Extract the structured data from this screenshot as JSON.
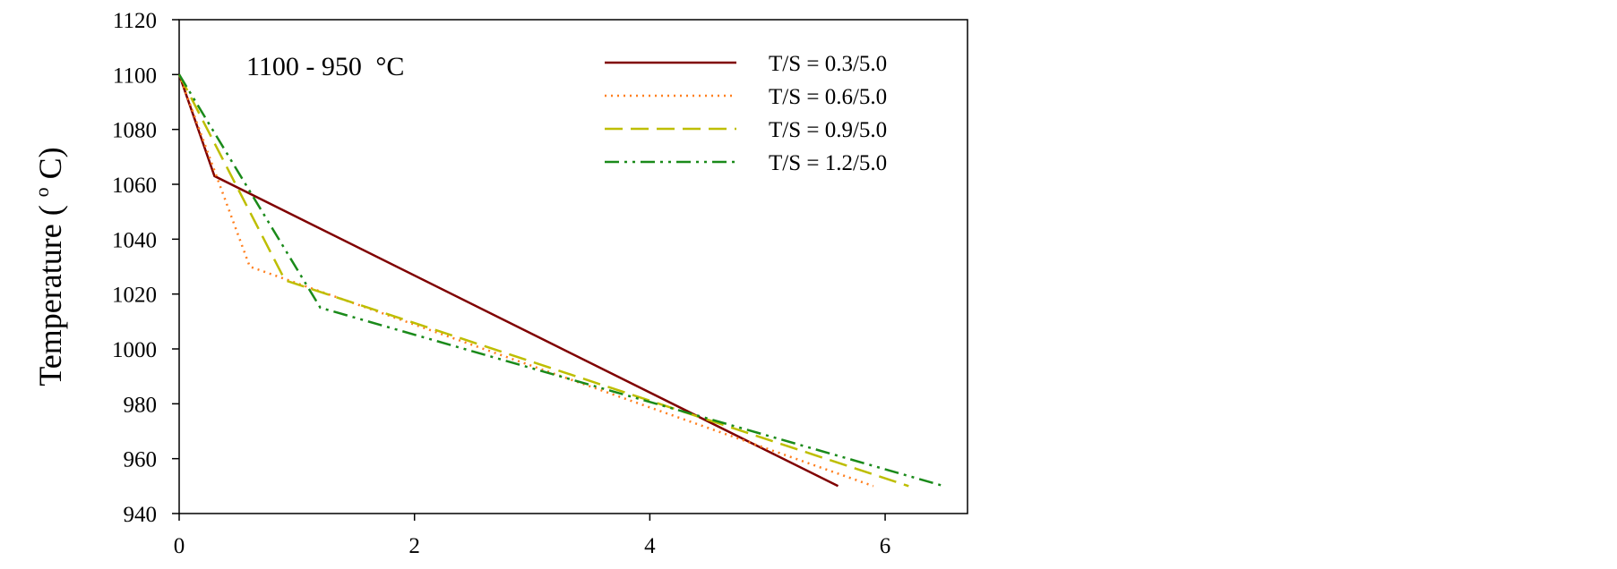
{
  "chart_data": {
    "type": "line",
    "title": "",
    "annotation": "1100 - 950",
    "annotation_unit": "°C",
    "xlabel": "",
    "ylabel": "Temperature (",
    "ylabel_sup": "o",
    "ylabel_unit": "C)",
    "xlim": [
      0,
      6.7
    ],
    "ylim": [
      940,
      1120
    ],
    "x_ticks": [
      0,
      2,
      4,
      6
    ],
    "y_ticks": [
      940,
      960,
      980,
      1000,
      1020,
      1040,
      1060,
      1080,
      1100,
      1120
    ],
    "grid": false,
    "legend_position": "top-right",
    "series": [
      {
        "name": "T/S = 0.3/5.0",
        "color": "#800000",
        "dash": "solid",
        "x": [
          0,
          0.3,
          5.6
        ],
        "y": [
          1100,
          1063,
          950
        ]
      },
      {
        "name": "T/S = 0.6/5.0",
        "color": "#ff7f1e",
        "dash": "dotted",
        "x": [
          0,
          0.6,
          5.9
        ],
        "y": [
          1100,
          1030,
          950
        ]
      },
      {
        "name": "T/S = 0.9/5.0",
        "color": "#bebe00",
        "dash": "dashed",
        "x": [
          0,
          0.9,
          6.2
        ],
        "y": [
          1100,
          1025,
          950
        ]
      },
      {
        "name": "T/S = 1.2/5.0",
        "color": "#1a8a1a",
        "dash": "dashdotdot",
        "x": [
          0,
          1.2,
          6.5
        ],
        "y": [
          1100,
          1015,
          950
        ]
      }
    ]
  }
}
